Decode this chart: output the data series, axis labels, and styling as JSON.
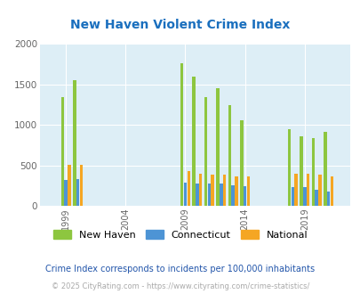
{
  "title": "New Haven Violent Crime Index",
  "title_color": "#1a6fbe",
  "plot_bg_color": "#ddeef6",
  "years": [
    1999,
    2000,
    2009,
    2010,
    2011,
    2012,
    2013,
    2014,
    2018,
    2019,
    2020,
    2021
  ],
  "new_haven": [
    1340,
    1550,
    1760,
    1600,
    1345,
    1455,
    1250,
    1055,
    950,
    855,
    840,
    910
  ],
  "connecticut": [
    315,
    335,
    290,
    280,
    270,
    275,
    255,
    240,
    235,
    235,
    200,
    175
  ],
  "national": [
    505,
    505,
    430,
    400,
    385,
    385,
    368,
    365,
    400,
    400,
    390,
    365
  ],
  "new_haven_color": "#8dc63f",
  "connecticut_color": "#4d94d5",
  "national_color": "#f5a623",
  "ylim": [
    0,
    2000
  ],
  "yticks": [
    0,
    500,
    1000,
    1500,
    2000
  ],
  "xtick_labels": [
    "1999",
    "2004",
    "2009",
    "2014",
    "2019"
  ],
  "xtick_positions": [
    1999,
    2004,
    2009,
    2014,
    2019
  ],
  "legend_labels": [
    "New Haven",
    "Connecticut",
    "National"
  ],
  "footnote1": "Crime Index corresponds to incidents per 100,000 inhabitants",
  "footnote2": "© 2025 CityRating.com - https://www.cityrating.com/crime-statistics/",
  "footnote1_color": "#2255aa",
  "footnote2_color": "#aaaaaa",
  "grid_color": "#ffffff"
}
